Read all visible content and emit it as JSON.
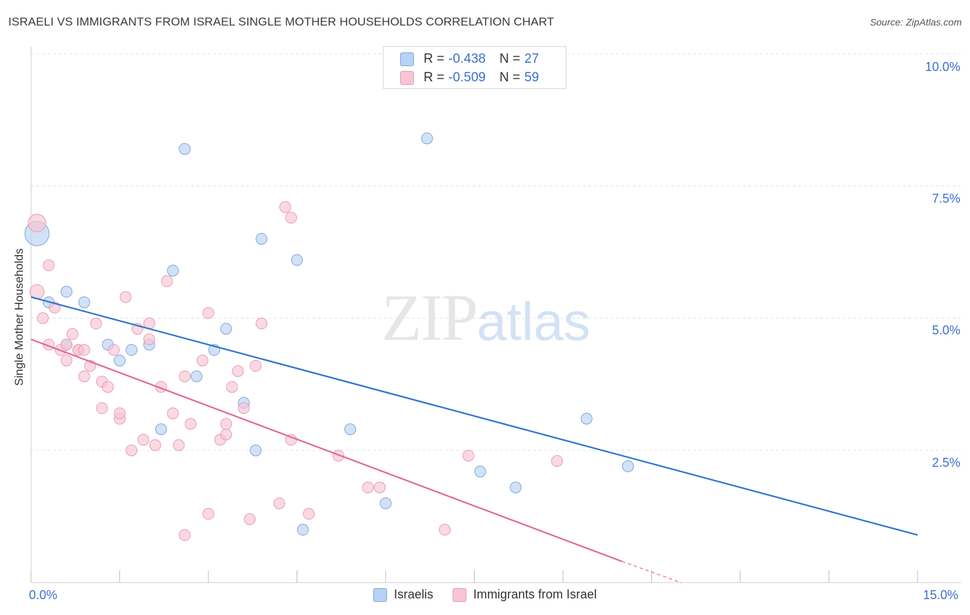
{
  "title": "ISRAELI VS IMMIGRANTS FROM ISRAEL SINGLE MOTHER HOUSEHOLDS CORRELATION CHART",
  "source": "Source: ZipAtlas.com",
  "watermark": {
    "zip": "ZIP",
    "atlas": "atlas"
  },
  "legend_top": [
    {
      "r_label": "R =",
      "r_value": "-0.438",
      "n_label": "N =",
      "n_value": "27"
    },
    {
      "r_label": "R =",
      "r_value": "-0.509",
      "n_label": "N =",
      "n_value": "59"
    }
  ],
  "colors": {
    "israelis_fill": "#b8d2f3",
    "israelis_stroke": "#7ea6dd",
    "israelis_line": "#2f74d0",
    "immigrants_fill": "#f8c5d4",
    "immigrants_stroke": "#ea9ab3",
    "immigrants_line": "#e06a95",
    "axis_label": "#3b6fd0"
  },
  "chart_data": {
    "type": "scatter",
    "title": "ISRAELI VS IMMIGRANTS FROM ISRAEL SINGLE MOTHER HOUSEHOLDS CORRELATION CHART",
    "xlabel": "",
    "ylabel": "Single Mother Households",
    "xlim": [
      0,
      15
    ],
    "ylim": [
      0,
      10
    ],
    "x_tick_labels": [
      "0.0%",
      "15.0%"
    ],
    "y_tick_labels": [
      "2.5%",
      "5.0%",
      "7.5%",
      "10.0%"
    ],
    "y_ticks": [
      2.5,
      5.0,
      7.5,
      10.0
    ],
    "grid": true,
    "legend_position": "bottom",
    "series": [
      {
        "name": "Israelis",
        "points": [
          [
            0.1,
            6.6,
            2.2
          ],
          [
            0.3,
            5.3,
            1
          ],
          [
            0.6,
            5.5,
            1
          ],
          [
            0.9,
            5.3,
            1
          ],
          [
            1.3,
            4.5,
            1
          ],
          [
            1.5,
            4.2,
            1
          ],
          [
            1.7,
            4.4,
            1
          ],
          [
            2.0,
            4.5,
            1
          ],
          [
            2.2,
            2.9,
            1
          ],
          [
            2.4,
            5.9,
            1
          ],
          [
            2.6,
            8.2,
            1
          ],
          [
            2.8,
            3.9,
            1
          ],
          [
            3.1,
            4.4,
            1
          ],
          [
            3.3,
            4.8,
            1
          ],
          [
            3.6,
            3.4,
            1
          ],
          [
            3.8,
            2.5,
            1
          ],
          [
            3.9,
            6.5,
            1
          ],
          [
            4.5,
            6.1,
            1
          ],
          [
            4.6,
            1.0,
            1
          ],
          [
            5.4,
            2.9,
            1
          ],
          [
            6.0,
            1.5,
            1
          ],
          [
            6.7,
            8.4,
            1
          ],
          [
            7.6,
            2.1,
            1
          ],
          [
            8.2,
            1.8,
            1
          ],
          [
            9.4,
            3.1,
            1
          ],
          [
            10.1,
            2.2,
            1
          ],
          [
            0.6,
            4.5,
            1
          ]
        ],
        "trend": {
          "x1": 0,
          "y1": 5.4,
          "x2": 15,
          "y2": 0.9
        }
      },
      {
        "name": "Immigrants from Israel",
        "points": [
          [
            0.1,
            6.8,
            1.6
          ],
          [
            0.1,
            5.5,
            1.3
          ],
          [
            0.2,
            5.0,
            1
          ],
          [
            0.3,
            6.0,
            1
          ],
          [
            0.3,
            4.5,
            1
          ],
          [
            0.4,
            5.2,
            1
          ],
          [
            0.5,
            4.4,
            1
          ],
          [
            0.6,
            4.2,
            1
          ],
          [
            0.6,
            4.5,
            1
          ],
          [
            0.7,
            4.7,
            1
          ],
          [
            0.8,
            4.4,
            1
          ],
          [
            0.8,
            4.4,
            1
          ],
          [
            0.9,
            3.9,
            1
          ],
          [
            0.9,
            4.4,
            1
          ],
          [
            1.0,
            4.1,
            1
          ],
          [
            1.1,
            4.9,
            1
          ],
          [
            1.2,
            3.8,
            1
          ],
          [
            1.2,
            3.3,
            1
          ],
          [
            1.3,
            3.7,
            1
          ],
          [
            1.4,
            4.4,
            1
          ],
          [
            1.5,
            3.1,
            1
          ],
          [
            1.5,
            3.2,
            1
          ],
          [
            1.6,
            5.4,
            1
          ],
          [
            1.7,
            2.5,
            1
          ],
          [
            1.8,
            4.8,
            1
          ],
          [
            1.9,
            2.7,
            1
          ],
          [
            2.0,
            4.9,
            1
          ],
          [
            2.0,
            4.6,
            1
          ],
          [
            2.1,
            2.6,
            1
          ],
          [
            2.2,
            3.7,
            1
          ],
          [
            2.3,
            5.7,
            1
          ],
          [
            2.4,
            3.2,
            1
          ],
          [
            2.5,
            2.6,
            1
          ],
          [
            2.6,
            0.9,
            1
          ],
          [
            2.6,
            3.9,
            1
          ],
          [
            2.7,
            3.0,
            1
          ],
          [
            2.9,
            4.2,
            1
          ],
          [
            3.0,
            5.1,
            1
          ],
          [
            3.0,
            1.3,
            1
          ],
          [
            3.2,
            2.7,
            1
          ],
          [
            3.3,
            2.8,
            1
          ],
          [
            3.3,
            3.0,
            1
          ],
          [
            3.4,
            3.7,
            1
          ],
          [
            3.5,
            4.0,
            1
          ],
          [
            3.6,
            3.3,
            1
          ],
          [
            3.7,
            1.2,
            1
          ],
          [
            3.8,
            4.1,
            1
          ],
          [
            3.9,
            4.9,
            1
          ],
          [
            4.2,
            1.5,
            1
          ],
          [
            4.3,
            7.1,
            1
          ],
          [
            4.4,
            6.9,
            1
          ],
          [
            4.4,
            2.7,
            1
          ],
          [
            4.7,
            1.3,
            1
          ],
          [
            5.2,
            2.4,
            1
          ],
          [
            5.7,
            1.8,
            1
          ],
          [
            5.9,
            1.8,
            1
          ],
          [
            7.0,
            1.0,
            1
          ],
          [
            7.4,
            2.4,
            1
          ],
          [
            8.9,
            2.3,
            1
          ]
        ],
        "trend": {
          "x1": 0,
          "y1": 4.6,
          "x2": 10,
          "y2": 0.4
        },
        "trend_dashed_to": {
          "x": 11,
          "y": 0.0
        }
      }
    ]
  },
  "bottom_legend": [
    {
      "label": "Israelis"
    },
    {
      "label": "Immigrants from Israel"
    }
  ]
}
